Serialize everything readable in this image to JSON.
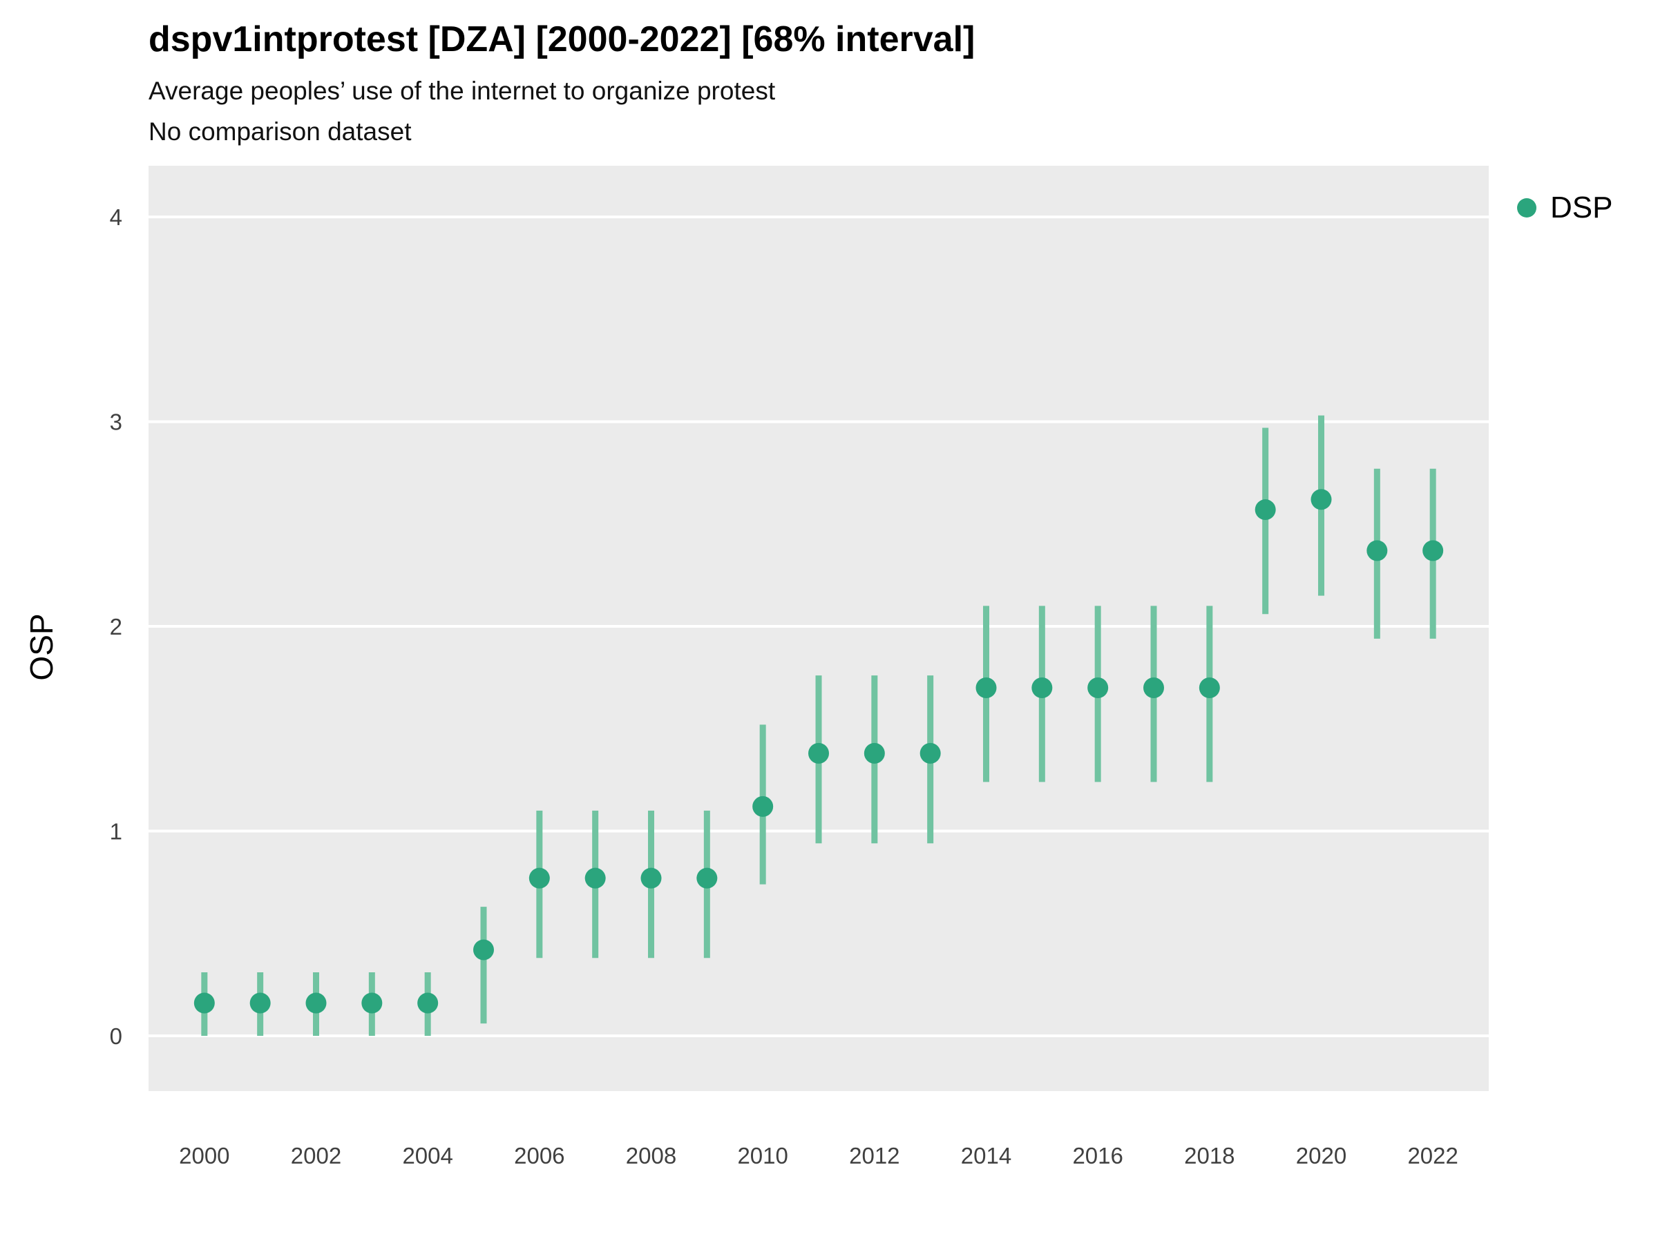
{
  "header": {
    "title": "dspv1intprotest [DZA] [2000-2022] [68% interval]",
    "subtitle": "Average peoples’ use of the internet to organize protest",
    "subtitle2": "No comparison dataset"
  },
  "legend": {
    "position": "right",
    "items": [
      {
        "label": "DSP",
        "color": "#2ba57d"
      }
    ]
  },
  "chart_data": {
    "type": "scatter",
    "title": "dspv1intprotest [DZA] [2000-2022] [68% interval]",
    "subtitle": "Average peoples’ use of the internet to organize protest",
    "note": "No comparison dataset",
    "xlabel": "",
    "ylabel": "OSP",
    "xlim": [
      1999,
      2023
    ],
    "ylim": [
      -0.27,
      4.25
    ],
    "x_ticks": [
      2000,
      2002,
      2004,
      2006,
      2008,
      2010,
      2012,
      2014,
      2016,
      2018,
      2020,
      2022
    ],
    "y_ticks": [
      0,
      1,
      2,
      3,
      4
    ],
    "panel_bg": "#EBEBEB",
    "grid_color": "#FFFFFF",
    "series": [
      {
        "name": "DSP",
        "point_color": "#2ba57d",
        "interval_color": "#70c3a1",
        "x": [
          2000,
          2001,
          2002,
          2003,
          2004,
          2005,
          2006,
          2007,
          2008,
          2009,
          2010,
          2011,
          2012,
          2013,
          2014,
          2015,
          2016,
          2017,
          2018,
          2019,
          2020,
          2021,
          2022
        ],
        "y": [
          0.16,
          0.16,
          0.16,
          0.16,
          0.16,
          0.42,
          0.77,
          0.77,
          0.77,
          0.77,
          1.12,
          1.38,
          1.38,
          1.38,
          1.7,
          1.7,
          1.7,
          1.7,
          1.7,
          2.57,
          2.62,
          2.37,
          2.37
        ],
        "y_low": [
          0.0,
          0.0,
          0.0,
          0.0,
          0.0,
          0.06,
          0.38,
          0.38,
          0.38,
          0.38,
          0.74,
          0.94,
          0.94,
          0.94,
          1.24,
          1.24,
          1.24,
          1.24,
          1.24,
          2.06,
          2.15,
          1.94,
          1.94
        ],
        "y_high": [
          0.31,
          0.31,
          0.31,
          0.31,
          0.31,
          0.63,
          1.1,
          1.1,
          1.1,
          1.1,
          1.52,
          1.76,
          1.76,
          1.76,
          2.1,
          2.1,
          2.1,
          2.1,
          2.1,
          2.97,
          3.03,
          2.77,
          2.77
        ]
      }
    ]
  }
}
